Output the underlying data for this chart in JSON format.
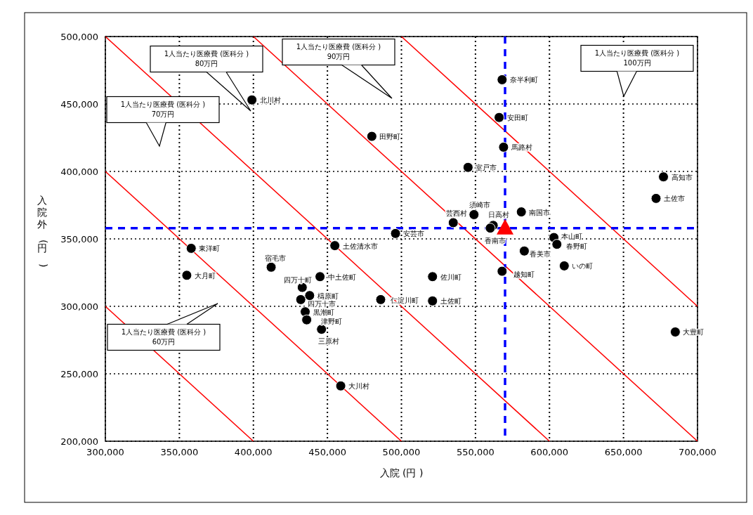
{
  "chart_data": {
    "type": "scatter",
    "xlabel": "入院 (円 )",
    "ylabel": "入院外 (円 )",
    "xlim": [
      300000,
      700000
    ],
    "ylim": [
      200000,
      500000
    ],
    "xticks": [
      {
        "value": 300000,
        "label": "300,000"
      },
      {
        "value": 350000,
        "label": "350,000"
      },
      {
        "value": 400000,
        "label": "400,000"
      },
      {
        "value": 450000,
        "label": "450,000"
      },
      {
        "value": 500000,
        "label": "500,000"
      },
      {
        "value": 550000,
        "label": "550,000"
      },
      {
        "value": 600000,
        "label": "600,000"
      },
      {
        "value": 650000,
        "label": "650,000"
      },
      {
        "value": 700000,
        "label": "700,000"
      }
    ],
    "yticks": [
      {
        "value": 200000,
        "label": "200,000"
      },
      {
        "value": 250000,
        "label": "250,000"
      },
      {
        "value": 300000,
        "label": "300,000"
      },
      {
        "value": 350000,
        "label": "350,000"
      },
      {
        "value": 400000,
        "label": "400,000"
      },
      {
        "value": 450000,
        "label": "450,000"
      },
      {
        "value": 500000,
        "label": "500,000"
      }
    ],
    "grid": true,
    "series": [
      {
        "type": "line",
        "color": "#ff0000",
        "x": [
          300000,
          400000
        ],
        "values": [
          300000,
          200000
        ]
      },
      {
        "type": "line",
        "color": "#ff0000",
        "x": [
          300000,
          500000
        ],
        "values": [
          400000,
          200000
        ]
      },
      {
        "type": "line",
        "color": "#ff0000",
        "x": [
          300000,
          600000
        ],
        "values": [
          500000,
          200000
        ]
      },
      {
        "type": "line",
        "color": "#ff0000",
        "x": [
          400000,
          700000
        ],
        "values": [
          500000,
          200000
        ]
      },
      {
        "type": "line",
        "color": "#ff0000",
        "x": [
          500000,
          700000
        ],
        "values": [
          500000,
          300000
        ]
      },
      {
        "type": "scatter",
        "marker": "circle",
        "color": "#000000",
        "x": [
          399000,
          480000,
          568000,
          566000,
          569000,
          545000,
          677000,
          672000,
          581000,
          549000,
          535000,
          562000,
          560000,
          358000,
          355000,
          412000,
          455000,
          496000,
          445000,
          433000,
          438000,
          432000,
          435000,
          436000,
          446000,
          459000,
          486000,
          603000,
          605000,
          583000,
          610000,
          568000,
          521000,
          521000,
          685000
        ],
        "values": [
          453000,
          426000,
          468000,
          440000,
          418000,
          403000,
          396000,
          380000,
          370000,
          368000,
          362000,
          360000,
          358000,
          343000,
          323000,
          329000,
          345000,
          354000,
          322000,
          314000,
          308000,
          305000,
          296000,
          290000,
          283000,
          241000,
          305000,
          351000,
          346000,
          341000,
          330000,
          326000,
          322000,
          304000,
          281000
        ]
      },
      {
        "type": "scatter",
        "marker": "triangle",
        "color": "#ff0000",
        "x": [
          570000
        ],
        "values": [
          358000
        ]
      }
    ],
    "ref_lines": [
      {
        "axis": "x",
        "value": 570000,
        "color": "#0000ff",
        "line_style": "dashed"
      },
      {
        "axis": "y",
        "value": 358000,
        "color": "#0000ff",
        "line_style": "dashed"
      }
    ],
    "annotations": [
      "1人当たり医療費 (医科分 )\n70万円",
      "1人当たり医療費 (医科分 )\n80万円",
      "1人当たり医療費 (医科分 )\n90万円",
      "1人当たり医療費 (医科分 )\n100万円",
      "1人当たり医療費 (医科分 )\n60万円",
      {
        "text": "北川村",
        "x": 399000,
        "y": 453000
      },
      {
        "text": "田野町",
        "x": 480000,
        "y": 426000
      },
      {
        "text": "奈半利町",
        "x": 568000,
        "y": 468000
      },
      {
        "text": "安田町",
        "x": 566000,
        "y": 440000
      },
      {
        "text": "馬路村",
        "x": 569000,
        "y": 418000
      },
      {
        "text": "室戸市",
        "x": 545000,
        "y": 403000
      },
      {
        "text": "高知市",
        "x": 677000,
        "y": 396000
      },
      {
        "text": "土佐市",
        "x": 672000,
        "y": 380000
      },
      {
        "text": "南国市",
        "x": 581000,
        "y": 370000
      },
      {
        "text": "須崎市",
        "x": 549000,
        "y": 368000
      },
      {
        "text": "芸西村",
        "x": 535000,
        "y": 362000
      },
      {
        "text": "日高村",
        "x": 562000,
        "y": 360000
      },
      {
        "text": "香南市",
        "x": 560000,
        "y": 358000
      },
      {
        "text": "東洋町",
        "x": 358000,
        "y": 343000
      },
      {
        "text": "大月町",
        "x": 355000,
        "y": 323000
      },
      {
        "text": "宿毛市",
        "x": 412000,
        "y": 329000
      },
      {
        "text": "土佐清水市",
        "x": 455000,
        "y": 345000
      },
      {
        "text": "安芸市",
        "x": 496000,
        "y": 354000
      },
      {
        "text": "中土佐町",
        "x": 445000,
        "y": 322000
      },
      {
        "text": "四万十町",
        "x": 433000,
        "y": 314000
      },
      {
        "text": "檮原町",
        "x": 438000,
        "y": 308000
      },
      {
        "text": "四万十市",
        "x": 432000,
        "y": 305000
      },
      {
        "text": "黒潮町",
        "x": 435000,
        "y": 296000
      },
      {
        "text": "津野町",
        "x": 436000,
        "y": 290000
      },
      {
        "text": "三原村",
        "x": 446000,
        "y": 283000
      },
      {
        "text": "大川村",
        "x": 459000,
        "y": 241000
      },
      {
        "text": "仁淀川町",
        "x": 486000,
        "y": 305000
      },
      {
        "text": "本山町",
        "x": 603000,
        "y": 351000
      },
      {
        "text": "春野町",
        "x": 605000,
        "y": 346000
      },
      {
        "text": "香美市",
        "x": 583000,
        "y": 341000
      },
      {
        "text": "いの町",
        "x": 610000,
        "y": 330000
      },
      {
        "text": "越知町",
        "x": 568000,
        "y": 326000
      },
      {
        "text": "佐川町",
        "x": 521000,
        "y": 322000
      },
      {
        "text": "土佐町",
        "x": 521000,
        "y": 304000
      },
      {
        "text": "大豊町",
        "x": 685000,
        "y": 281000
      }
    ]
  }
}
